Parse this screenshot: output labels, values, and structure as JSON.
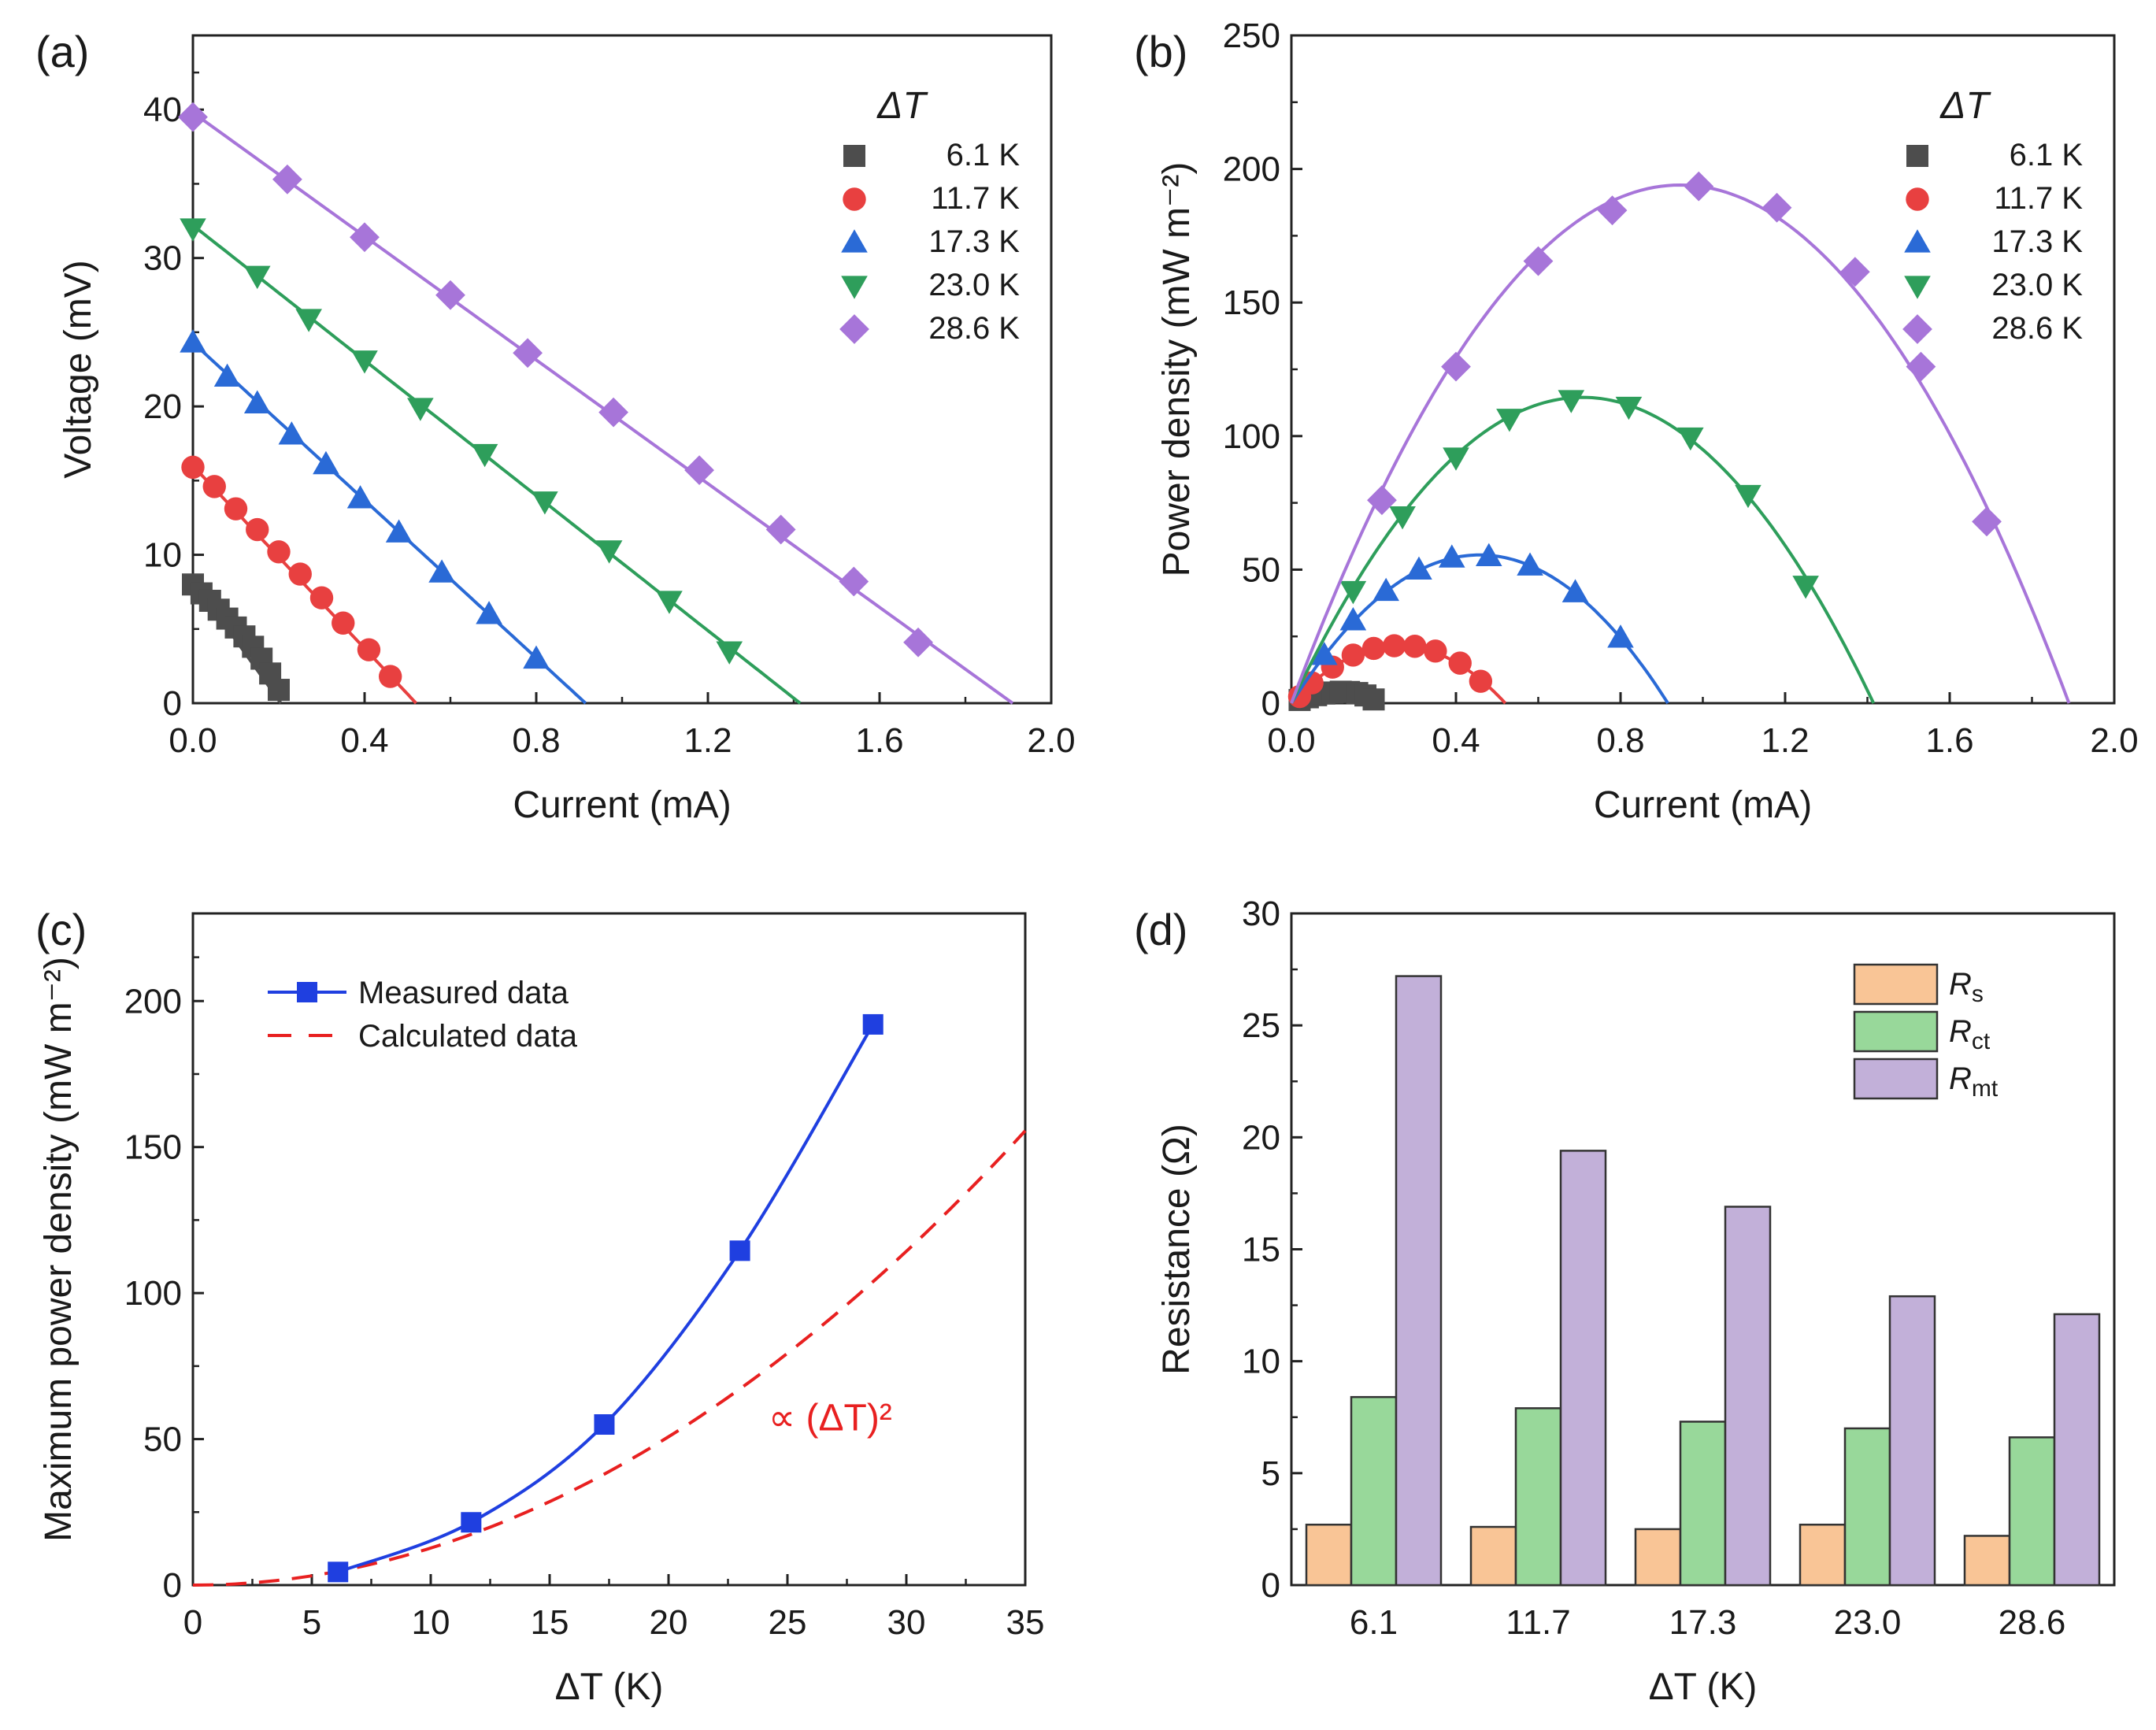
{
  "chart_data": [
    {
      "id": "a",
      "panel_label": "(a)",
      "type": "line",
      "xlabel": "Current (mA)",
      "ylabel": "Voltage (mV)",
      "xlim": [
        0,
        2.0
      ],
      "ylim": [
        0,
        45
      ],
      "xticks": [
        "0.0",
        "0.4",
        "0.8",
        "1.2",
        "1.6",
        "2.0"
      ],
      "yticks": [
        "0",
        "10",
        "20",
        "30",
        "40"
      ],
      "legend_title": "ΔT",
      "legend_position": "top-right",
      "series": [
        {
          "name": "6.1 K",
          "color": "#4d4d4d",
          "marker": "square",
          "fit": [
            8.3,
            0.205
          ],
          "points": [
            [
              0.0,
              8.0
            ],
            [
              0.02,
              7.4
            ],
            [
              0.04,
              6.9
            ],
            [
              0.06,
              6.3
            ],
            [
              0.08,
              5.7
            ],
            [
              0.1,
              5.1
            ],
            [
              0.12,
              4.5
            ],
            [
              0.14,
              3.8
            ],
            [
              0.16,
              3.0
            ],
            [
              0.18,
              2.0
            ],
            [
              0.2,
              0.9
            ]
          ]
        },
        {
          "name": "11.7 K",
          "color": "#e84040",
          "marker": "circle",
          "fit": [
            16.0,
            0.52
          ],
          "points": [
            [
              0.0,
              15.9
            ],
            [
              0.05,
              14.6
            ],
            [
              0.1,
              13.1
            ],
            [
              0.15,
              11.7
            ],
            [
              0.2,
              10.2
            ],
            [
              0.25,
              8.7
            ],
            [
              0.3,
              7.1
            ],
            [
              0.35,
              5.4
            ],
            [
              0.41,
              3.6
            ],
            [
              0.46,
              1.8
            ]
          ]
        },
        {
          "name": "17.3 K",
          "color": "#2a6ad6",
          "marker": "triangle-up",
          "fit": [
            24.3,
            0.915
          ],
          "points": [
            [
              0.0,
              24.3
            ],
            [
              0.08,
              22.0
            ],
            [
              0.15,
              20.2
            ],
            [
              0.23,
              18.1
            ],
            [
              0.31,
              16.1
            ],
            [
              0.39,
              13.8
            ],
            [
              0.48,
              11.5
            ],
            [
              0.58,
              8.8
            ],
            [
              0.69,
              6.0
            ],
            [
              0.8,
              3.0
            ]
          ]
        },
        {
          "name": "23.0 K",
          "color": "#2e9e5b",
          "marker": "triangle-down",
          "fit": [
            32.2,
            1.415
          ],
          "points": [
            [
              0.0,
              32.0
            ],
            [
              0.15,
              28.8
            ],
            [
              0.27,
              25.9
            ],
            [
              0.4,
              23.1
            ],
            [
              0.53,
              19.9
            ],
            [
              0.68,
              16.8
            ],
            [
              0.82,
              13.6
            ],
            [
              0.97,
              10.3
            ],
            [
              1.11,
              6.9
            ],
            [
              1.25,
              3.5
            ]
          ]
        },
        {
          "name": "28.6 K",
          "color": "#a775d9",
          "marker": "diamond",
          "fit": [
            39.8,
            1.91
          ],
          "points": [
            [
              0.0,
              39.5
            ],
            [
              0.22,
              35.3
            ],
            [
              0.4,
              31.4
            ],
            [
              0.6,
              27.5
            ],
            [
              0.78,
              23.6
            ],
            [
              0.98,
              19.6
            ],
            [
              1.18,
              15.7
            ],
            [
              1.37,
              11.7
            ],
            [
              1.54,
              8.2
            ],
            [
              1.69,
              4.1
            ]
          ]
        }
      ]
    },
    {
      "id": "b",
      "panel_label": "(b)",
      "type": "line",
      "xlabel": "Current (mA)",
      "ylabel": "Power density (mW m⁻²)",
      "xlim": [
        0,
        2.0
      ],
      "ylim": [
        0,
        250
      ],
      "xticks": [
        "0.0",
        "0.4",
        "0.8",
        "1.2",
        "1.6",
        "2.0"
      ],
      "yticks": [
        "0",
        "50",
        "100",
        "150",
        "200",
        "250"
      ],
      "legend_title": "ΔT",
      "legend_position": "top-right",
      "series": [
        {
          "name": "6.1 K",
          "color": "#4d4d4d",
          "marker": "square",
          "fit": [
            4.5,
            0.205
          ],
          "points": [
            [
              0.02,
              1.2
            ],
            [
              0.04,
              2.2
            ],
            [
              0.06,
              3.0
            ],
            [
              0.08,
              3.6
            ],
            [
              0.1,
              4.0
            ],
            [
              0.12,
              4.3
            ],
            [
              0.14,
              4.2
            ],
            [
              0.16,
              3.8
            ],
            [
              0.18,
              2.9
            ],
            [
              0.2,
              1.4
            ]
          ]
        },
        {
          "name": "11.7 K",
          "color": "#e84040",
          "marker": "circle",
          "fit": [
            21.5,
            0.52
          ],
          "points": [
            [
              0.02,
              2.5
            ],
            [
              0.05,
              7.6
            ],
            [
              0.1,
              13.5
            ],
            [
              0.15,
              18.0
            ],
            [
              0.2,
              20.5
            ],
            [
              0.25,
              21.5
            ],
            [
              0.3,
              21.3
            ],
            [
              0.35,
              19.5
            ],
            [
              0.41,
              15.0
            ],
            [
              0.46,
              8.2
            ]
          ]
        },
        {
          "name": "17.3 K",
          "color": "#2a6ad6",
          "marker": "triangle-up",
          "fit": [
            55.5,
            0.915
          ],
          "points": [
            [
              0.08,
              18.0
            ],
            [
              0.15,
              31.0
            ],
            [
              0.23,
              42.0
            ],
            [
              0.31,
              50.0
            ],
            [
              0.39,
              54.5
            ],
            [
              0.48,
              55.0
            ],
            [
              0.58,
              51.5
            ],
            [
              0.69,
              41.5
            ],
            [
              0.8,
              24.5
            ]
          ]
        },
        {
          "name": "23.0 K",
          "color": "#2e9e5b",
          "marker": "triangle-down",
          "fit": [
            114.5,
            1.415
          ],
          "points": [
            [
              0.15,
              42.0
            ],
            [
              0.27,
              70.0
            ],
            [
              0.4,
              92.0
            ],
            [
              0.53,
              106.5
            ],
            [
              0.68,
              113.5
            ],
            [
              0.82,
              111.0
            ],
            [
              0.97,
              99.5
            ],
            [
              1.11,
              78.0
            ],
            [
              1.25,
              44.0
            ]
          ]
        },
        {
          "name": "28.6 K",
          "color": "#a775d9",
          "marker": "diamond",
          "fit": [
            194.0,
            1.89
          ],
          "points": [
            [
              0.22,
              76.0
            ],
            [
              0.4,
              126.0
            ],
            [
              0.6,
              165.5
            ],
            [
              0.78,
              184.5
            ],
            [
              0.99,
              193.5
            ],
            [
              1.18,
              185.5
            ],
            [
              1.37,
              161.5
            ],
            [
              1.53,
              126.0
            ],
            [
              1.69,
              68.0
            ]
          ]
        }
      ]
    },
    {
      "id": "c",
      "panel_label": "(c)",
      "type": "line",
      "xlabel": "ΔT (K)",
      "ylabel": "Maximum power density (mW m⁻²)",
      "xlim": [
        0,
        35
      ],
      "ylim": [
        0,
        230
      ],
      "xticks": [
        "0",
        "5",
        "10",
        "15",
        "20",
        "25",
        "30",
        "35"
      ],
      "yticks": [
        "0",
        "50",
        "100",
        "150",
        "200"
      ],
      "legend_position": "top-left",
      "annotation": "∝ (ΔT)²",
      "series": [
        {
          "name": "Measured data",
          "color": "#1f3fe0",
          "marker": "square",
          "style": "solid",
          "x": [
            6.1,
            11.7,
            17.3,
            23.0,
            28.6
          ],
          "y": [
            4.5,
            21.5,
            55.0,
            114.5,
            192.0
          ]
        },
        {
          "name": "Calculated data",
          "color": "#e82020",
          "style": "dashed",
          "curve": "y = 0.127 * x^2",
          "x_range": [
            0,
            35
          ]
        }
      ]
    },
    {
      "id": "d",
      "panel_label": "(d)",
      "type": "bar",
      "xlabel": "ΔT (K)",
      "ylabel": "Resistance (Ω)",
      "ylim": [
        0,
        30
      ],
      "yticks": [
        "0",
        "5",
        "10",
        "15",
        "20",
        "25",
        "30"
      ],
      "categories": [
        "6.1",
        "11.7",
        "17.3",
        "23.0",
        "28.6"
      ],
      "legend_position": "top-right",
      "series": [
        {
          "name": "R",
          "sub": "s",
          "color": "#f9c596",
          "values": [
            2.7,
            2.6,
            2.5,
            2.7,
            2.2
          ]
        },
        {
          "name": "R",
          "sub": "ct",
          "color": "#98d89a",
          "values": [
            8.4,
            7.9,
            7.3,
            7.0,
            6.6
          ]
        },
        {
          "name": "R",
          "sub": "mt",
          "color": "#c2b0d9",
          "values": [
            27.2,
            19.4,
            16.9,
            12.9,
            12.1
          ]
        }
      ]
    }
  ]
}
